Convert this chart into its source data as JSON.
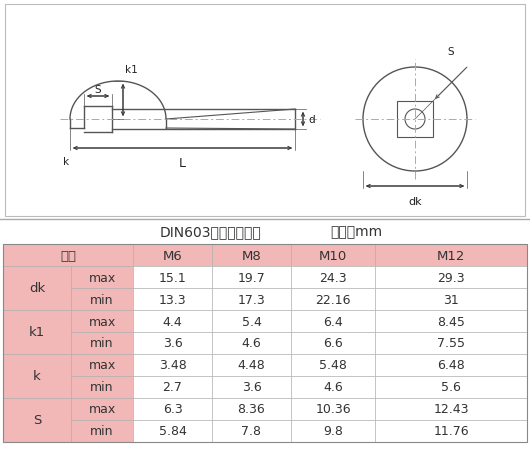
{
  "title_line1": "DIN603大头方颈螺栓",
  "title_line2": "单位：mm",
  "rows": [
    [
      "dk",
      "max",
      "15.1",
      "19.7",
      "24.3",
      "29.3"
    ],
    [
      "dk",
      "min",
      "13.3",
      "17.3",
      "22.16",
      "31"
    ],
    [
      "k1",
      "max",
      "4.4",
      "5.4",
      "6.4",
      "8.45"
    ],
    [
      "k1",
      "min",
      "3.6",
      "4.6",
      "6.6",
      "7.55"
    ],
    [
      "k",
      "max",
      "3.48",
      "4.48",
      "5.48",
      "6.48"
    ],
    [
      "k",
      "min",
      "2.7",
      "3.6",
      "4.6",
      "5.6"
    ],
    [
      "S",
      "max",
      "6.3",
      "8.36",
      "10.36",
      "12.43"
    ],
    [
      "S",
      "min",
      "5.84",
      "7.8",
      "9.8",
      "11.76"
    ]
  ],
  "pink": "#f2b8b8",
  "white": "#ffffff",
  "dark_text": "#333333",
  "centerline_color": "#aaaaaa",
  "line_color": "#555555"
}
